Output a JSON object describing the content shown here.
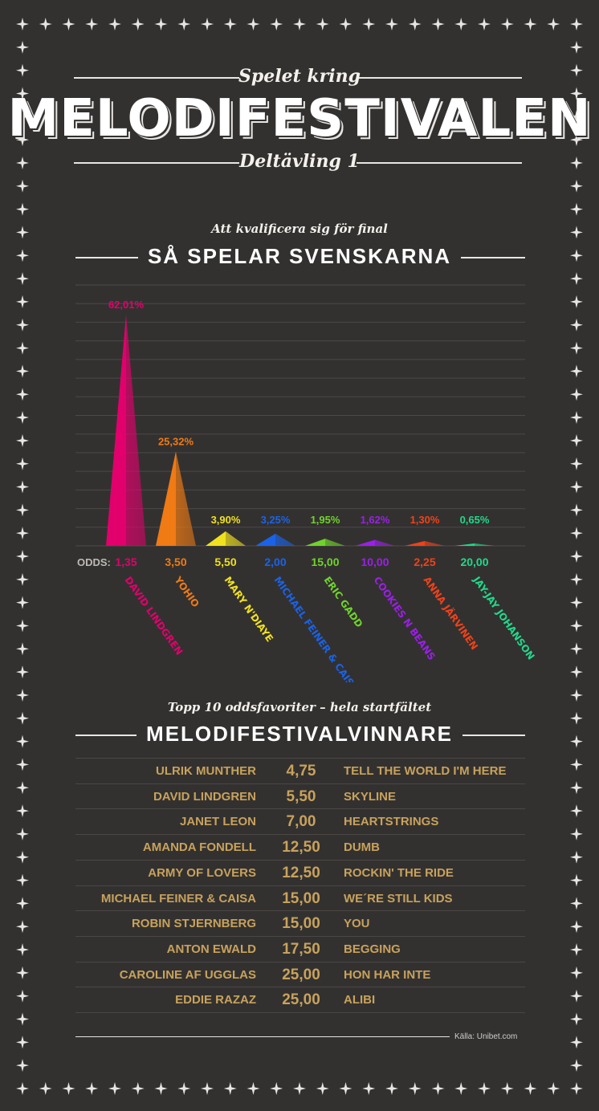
{
  "header": {
    "kicker": "Spelet kring",
    "title": "MELODIFESTIVALEN",
    "subtitle": "Deltävling 1"
  },
  "section1": {
    "kicker": "Att kvalificera sig för final",
    "title": "SÅ SPELAR SVENSKARNA"
  },
  "section2": {
    "kicker": "Topp 10 oddsfavoriter – hela startfältet",
    "title": "MELODIFESTIVALVINNARE"
  },
  "source": "Källa: Unibet.com",
  "colors": {
    "background": "#333130",
    "border_star": "#e8e6e3",
    "table_text": "#c8a25c"
  },
  "chart_data": {
    "type": "bar",
    "odds_label": "ODDS:",
    "ylim": [
      0,
      70
    ],
    "grid": true,
    "categories": [
      "DAVID LINDGREN",
      "YOHIO",
      "MARY N'DIAYE",
      "MICHAEL FEINER & CAISA",
      "ERIC GADD",
      "COOKIES N BEANS",
      "ANNA JÄRVINEN",
      "JAY-JAY JOHANSON"
    ],
    "value_labels": [
      "62,01%",
      "25,32%",
      "3,90%",
      "3,25%",
      "1,95%",
      "1,62%",
      "1,30%",
      "0,65%"
    ],
    "values": [
      62.01,
      25.32,
      3.9,
      3.25,
      1.95,
      1.62,
      1.3,
      0.65
    ],
    "odds": [
      "1,35",
      "3,50",
      "5,50",
      "2,00",
      "15,00",
      "10,00",
      "2,25",
      "20,00"
    ],
    "colors": [
      "#e2006d",
      "#f07a14",
      "#f0e11e",
      "#1a63e8",
      "#6fd42a",
      "#9b1fe8",
      "#f0421a",
      "#22d98a"
    ]
  },
  "table": {
    "rows": [
      {
        "artist": "ULRIK MUNTHER",
        "odds": "4,75",
        "song": "TELL THE WORLD I'M HERE"
      },
      {
        "artist": "DAVID LINDGREN",
        "odds": "5,50",
        "song": "SKYLINE"
      },
      {
        "artist": "JANET LEON",
        "odds": "7,00",
        "song": "HEARTSTRINGS"
      },
      {
        "artist": "AMANDA FONDELL",
        "odds": "12,50",
        "song": "DUMB"
      },
      {
        "artist": "ARMY OF LOVERS",
        "odds": "12,50",
        "song": "ROCKIN' THE RIDE"
      },
      {
        "artist": "MICHAEL FEINER & CAISA",
        "odds": "15,00",
        "song": "WE´RE STILL KIDS"
      },
      {
        "artist": "ROBIN STJERNBERG",
        "odds": "15,00",
        "song": "YOU"
      },
      {
        "artist": "ANTON EWALD",
        "odds": "17,50",
        "song": "BEGGING"
      },
      {
        "artist": "CAROLINE AF UGGLAS",
        "odds": "25,00",
        "song": "HON HAR INTE"
      },
      {
        "artist": "EDDIE RAZAZ",
        "odds": "25,00",
        "song": "ALIBI"
      }
    ]
  }
}
